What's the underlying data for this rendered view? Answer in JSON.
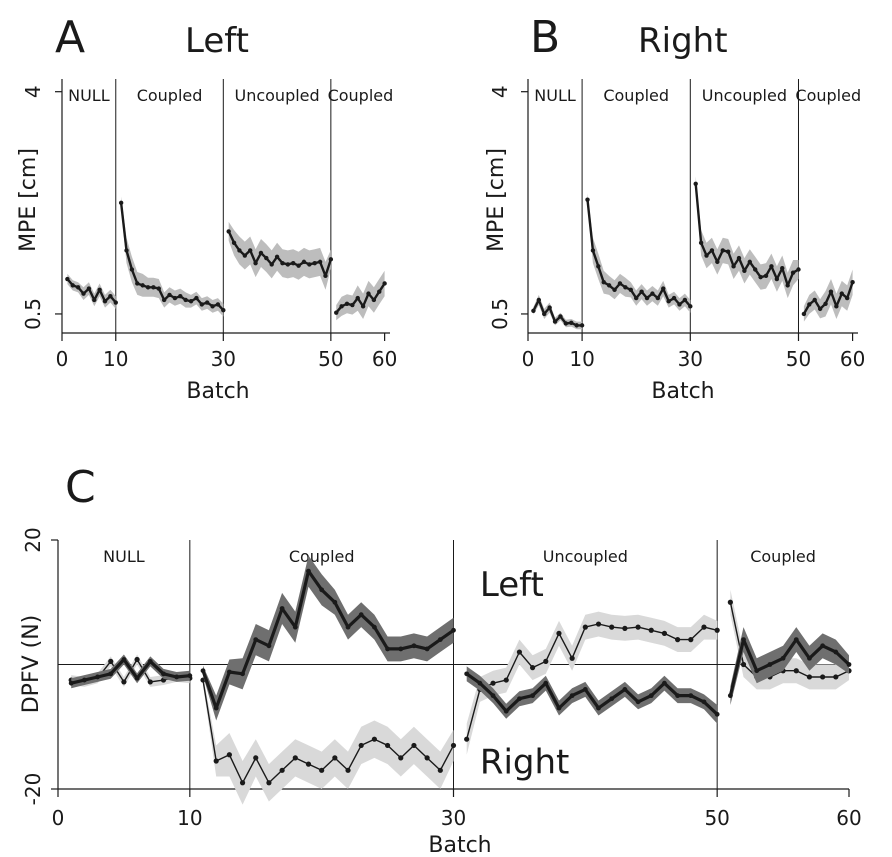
{
  "chart_data": [
    {
      "panel": "A",
      "title": "Left",
      "type": "line",
      "xlabel": "Batch",
      "ylabel": "MPE [cm]",
      "xlim": [
        0,
        61
      ],
      "ylim": [
        0.2,
        4.2
      ],
      "xticks": [
        0,
        10,
        30,
        50,
        60
      ],
      "yticks": [
        0.5,
        4
      ],
      "phases": [
        {
          "label": "NULL",
          "start": 0,
          "end": 10
        },
        {
          "label": "Coupled",
          "start": 10,
          "end": 30
        },
        {
          "label": "Uncoupled",
          "start": 30,
          "end": 50
        },
        {
          "label": "Coupled",
          "start": 50,
          "end": 61
        }
      ],
      "segments": [
        {
          "x": [
            1,
            2,
            3,
            4,
            5,
            6,
            7,
            8,
            9,
            10
          ],
          "y": [
            1.05,
            0.95,
            0.92,
            0.82,
            0.9,
            0.72,
            0.88,
            0.7,
            0.78,
            0.68
          ],
          "band": [
            0.08,
            0.08,
            0.08,
            0.1,
            0.1,
            0.1,
            0.1,
            0.1,
            0.1,
            0.1
          ]
        },
        {
          "x": [
            11,
            12,
            13,
            14,
            15,
            16,
            17,
            18,
            19,
            20,
            21,
            22,
            23,
            24,
            25,
            26,
            27,
            28,
            29,
            30
          ],
          "y": [
            2.25,
            1.5,
            1.2,
            0.98,
            0.95,
            0.92,
            0.92,
            0.9,
            0.72,
            0.8,
            0.75,
            0.78,
            0.72,
            0.7,
            0.75,
            0.65,
            0.68,
            0.62,
            0.65,
            0.56
          ],
          "band": [
            0.1,
            0.2,
            0.2,
            0.18,
            0.18,
            0.15,
            0.15,
            0.15,
            0.12,
            0.12,
            0.12,
            0.12,
            0.12,
            0.1,
            0.1,
            0.1,
            0.1,
            0.1,
            0.1,
            0.1
          ]
        },
        {
          "x": [
            31,
            32,
            33,
            34,
            35,
            36,
            37,
            38,
            39,
            40,
            41,
            42,
            43,
            44,
            45,
            46,
            47,
            48,
            49,
            50
          ],
          "y": [
            1.8,
            1.62,
            1.5,
            1.42,
            1.5,
            1.3,
            1.46,
            1.38,
            1.28,
            1.4,
            1.3,
            1.28,
            1.3,
            1.26,
            1.32,
            1.28,
            1.3,
            1.32,
            1.1,
            1.36
          ],
          "band": [
            0.15,
            0.2,
            0.22,
            0.22,
            0.22,
            0.22,
            0.22,
            0.22,
            0.22,
            0.22,
            0.22,
            0.22,
            0.22,
            0.22,
            0.22,
            0.22,
            0.22,
            0.22,
            0.22,
            0.15
          ]
        },
        {
          "x": [
            51,
            52,
            53,
            54,
            55,
            56,
            57,
            58,
            59,
            60
          ],
          "y": [
            0.52,
            0.62,
            0.66,
            0.64,
            0.75,
            0.62,
            0.82,
            0.72,
            0.85,
            0.98
          ],
          "band": [
            0.12,
            0.15,
            0.15,
            0.15,
            0.2,
            0.2,
            0.2,
            0.2,
            0.2,
            0.2
          ]
        }
      ]
    },
    {
      "panel": "B",
      "title": "Right",
      "type": "line",
      "xlabel": "Batch",
      "ylabel": "MPE [cm]",
      "xlim": [
        0,
        61
      ],
      "ylim": [
        0.2,
        4.2
      ],
      "xticks": [
        0,
        10,
        30,
        50,
        60
      ],
      "yticks": [
        0.5,
        4
      ],
      "phases": [
        {
          "label": "NULL",
          "start": 0,
          "end": 10
        },
        {
          "label": "Coupled",
          "start": 10,
          "end": 30
        },
        {
          "label": "Uncoupled",
          "start": 30,
          "end": 50
        },
        {
          "label": "Coupled",
          "start": 50,
          "end": 61
        }
      ],
      "segments": [
        {
          "x": [
            1,
            2,
            3,
            4,
            5,
            6,
            7,
            8,
            9,
            10
          ],
          "y": [
            0.55,
            0.72,
            0.5,
            0.6,
            0.38,
            0.46,
            0.35,
            0.36,
            0.32,
            0.32
          ],
          "band": [
            0.06,
            0.08,
            0.08,
            0.08,
            0.06,
            0.06,
            0.06,
            0.06,
            0.06,
            0.06
          ]
        },
        {
          "x": [
            11,
            12,
            13,
            14,
            15,
            16,
            17,
            18,
            19,
            20,
            21,
            22,
            23,
            24,
            25,
            26,
            27,
            28,
            29,
            30
          ],
          "y": [
            2.3,
            1.5,
            1.25,
            1.0,
            0.95,
            0.88,
            0.98,
            0.92,
            0.88,
            0.75,
            0.85,
            0.75,
            0.82,
            0.75,
            0.9,
            0.7,
            0.75,
            0.65,
            0.72,
            0.62
          ],
          "band": [
            0.1,
            0.2,
            0.2,
            0.18,
            0.15,
            0.15,
            0.15,
            0.15,
            0.12,
            0.12,
            0.12,
            0.12,
            0.12,
            0.12,
            0.12,
            0.1,
            0.1,
            0.1,
            0.1,
            0.1
          ]
        },
        {
          "x": [
            31,
            32,
            33,
            34,
            35,
            36,
            37,
            38,
            39,
            40,
            41,
            42,
            43,
            44,
            45,
            46,
            47,
            48,
            49,
            50
          ],
          "y": [
            2.55,
            1.62,
            1.42,
            1.5,
            1.32,
            1.5,
            1.48,
            1.25,
            1.38,
            1.18,
            1.32,
            1.2,
            1.08,
            1.1,
            1.25,
            1.05,
            1.22,
            0.95,
            1.15,
            1.2
          ],
          "band": [
            0.12,
            0.2,
            0.2,
            0.2,
            0.2,
            0.2,
            0.2,
            0.2,
            0.2,
            0.2,
            0.2,
            0.2,
            0.2,
            0.2,
            0.2,
            0.2,
            0.2,
            0.2,
            0.2,
            0.15
          ]
        },
        {
          "x": [
            51,
            52,
            53,
            54,
            55,
            56,
            57,
            58,
            59,
            60
          ],
          "y": [
            0.5,
            0.65,
            0.72,
            0.58,
            0.66,
            0.85,
            0.62,
            0.82,
            0.75,
            1.0
          ],
          "band": [
            0.12,
            0.15,
            0.15,
            0.15,
            0.2,
            0.2,
            0.2,
            0.2,
            0.2,
            0.2
          ]
        }
      ]
    },
    {
      "panel": "C",
      "type": "line",
      "xlabel": "Batch",
      "ylabel": "DPFV (N)",
      "xlim": [
        0,
        60
      ],
      "ylim": [
        -20,
        20
      ],
      "xticks": [
        0,
        10,
        30,
        50,
        60
      ],
      "yticks": [
        -20,
        20
      ],
      "phases": [
        {
          "label": "NULL",
          "start": 0,
          "end": 10
        },
        {
          "label": "Coupled",
          "start": 10,
          "end": 30
        },
        {
          "label": "Uncoupled",
          "start": 30,
          "end": 50
        },
        {
          "label": "Coupled",
          "start": 50,
          "end": 60
        }
      ],
      "annotations": [
        {
          "text": "Left",
          "x": 32,
          "y": 11
        },
        {
          "text": "Right",
          "x": 32,
          "y": -17.5
        }
      ],
      "series": [
        {
          "name": "Left",
          "x": [
            1,
            2,
            3,
            4,
            5,
            6,
            7,
            8,
            9,
            10,
            11,
            12,
            13,
            14,
            15,
            16,
            17,
            18,
            19,
            20,
            21,
            22,
            23,
            24,
            25,
            26,
            27,
            28,
            29,
            30,
            31,
            32,
            33,
            34,
            35,
            36,
            37,
            38,
            39,
            40,
            41,
            42,
            43,
            44,
            45,
            46,
            47,
            48,
            49,
            50,
            51,
            52,
            53,
            54,
            55,
            56,
            57,
            58,
            59,
            60
          ],
          "y": [
            -3,
            -2.5,
            -2,
            -1.5,
            0.8,
            -2.2,
            0.5,
            -1.5,
            -2,
            -1.8,
            -1,
            -7,
            -1.2,
            -1.5,
            4,
            3,
            9,
            6,
            15,
            12,
            10,
            6,
            8,
            6,
            2.5,
            2.5,
            3,
            2.5,
            4,
            5.5,
            -1.5,
            -3,
            -5,
            -7.5,
            -5.5,
            -5,
            -3,
            -7,
            -5,
            -4,
            -7,
            -5.5,
            -4,
            -6,
            -5,
            -3,
            -5,
            -5,
            -6,
            -8,
            -5,
            4,
            -1,
            0,
            1,
            4,
            1,
            3,
            2,
            0
          ],
          "band": [
            0.8,
            0.8,
            0.8,
            0.8,
            0.8,
            0.8,
            0.8,
            0.8,
            0.8,
            0.8,
            0.8,
            2,
            2,
            2.5,
            2.5,
            2.5,
            2.5,
            2.5,
            2.5,
            2.5,
            2,
            2,
            2,
            2,
            2,
            2,
            2,
            2,
            2,
            2,
            1.2,
            1.2,
            1.2,
            1.2,
            1.2,
            1.2,
            1.2,
            1.2,
            1.2,
            1.2,
            1.2,
            1.2,
            1.2,
            1.2,
            1.2,
            1.2,
            1.2,
            1.2,
            1.2,
            1.5,
            1.5,
            2,
            2,
            2,
            2,
            2,
            2,
            2,
            2,
            1.5
          ]
        },
        {
          "name": "Right",
          "x": [
            1,
            2,
            3,
            4,
            5,
            6,
            7,
            8,
            9,
            10,
            11,
            12,
            13,
            14,
            15,
            16,
            17,
            18,
            19,
            20,
            21,
            22,
            23,
            24,
            25,
            26,
            27,
            28,
            29,
            30,
            31,
            32,
            33,
            34,
            35,
            36,
            37,
            38,
            39,
            40,
            41,
            42,
            43,
            44,
            45,
            46,
            47,
            48,
            49,
            50,
            51,
            52,
            53,
            54,
            55,
            56,
            57,
            58,
            59,
            60
          ],
          "y": [
            -2.5,
            -2.8,
            -2.2,
            0.5,
            -2.8,
            0.8,
            -2.8,
            -2.5,
            -2,
            -2.2,
            -2.5,
            -15.5,
            -14.5,
            -19,
            -15,
            -19,
            -17,
            -15,
            -16,
            -17,
            -15,
            -17,
            -13,
            -12,
            -13,
            -15,
            -13,
            -15,
            -17,
            -13,
            -12,
            -4,
            -3,
            -2.5,
            2,
            -0.5,
            0.5,
            5,
            1,
            6,
            6.5,
            6,
            5.8,
            6,
            5.5,
            5,
            4,
            4,
            6,
            5.5,
            10,
            0,
            -2,
            -2,
            -1,
            -1,
            -2,
            -2,
            -2,
            -1
          ],
          "band": [
            0.8,
            0.8,
            0.8,
            0.8,
            0.8,
            0.8,
            0.8,
            0.8,
            0.8,
            0.8,
            0.8,
            2.5,
            3.5,
            3.5,
            3,
            3,
            3,
            3,
            3,
            3,
            3,
            3,
            3,
            3,
            3,
            3,
            3,
            3,
            3,
            2.5,
            2.5,
            2,
            2,
            2,
            2,
            2,
            2,
            2,
            2,
            2,
            2,
            2,
            2,
            2,
            2,
            2,
            2,
            2,
            2,
            1.5,
            2,
            2,
            2,
            2,
            2,
            2,
            2,
            2,
            2,
            1.5
          ]
        }
      ]
    }
  ]
}
